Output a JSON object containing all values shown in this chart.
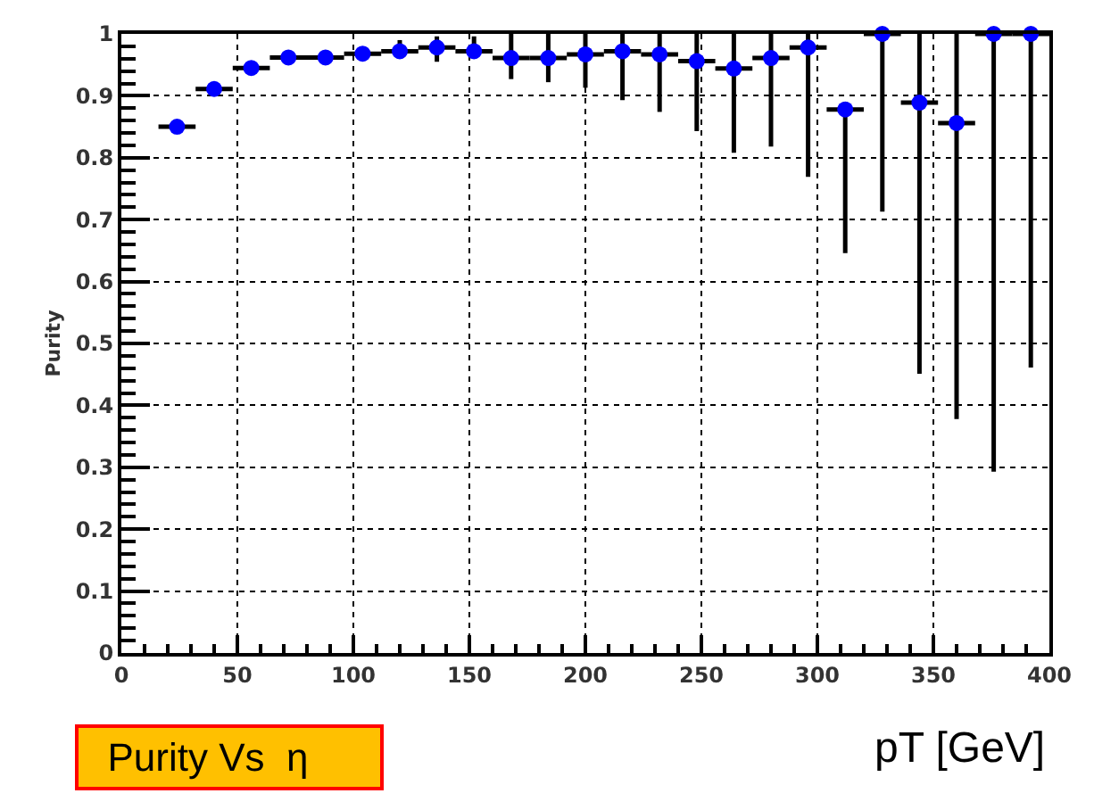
{
  "chart_data": {
    "type": "scatter",
    "ylabel": "Purity",
    "xlabel": "pT [GeV]",
    "annotations": [
      "Purity Vs  η"
    ],
    "x": [
      24,
      40,
      56,
      72,
      88,
      104,
      120,
      136,
      152,
      168,
      184,
      200,
      216,
      232,
      248,
      264,
      280,
      296,
      312,
      328,
      344,
      360,
      376,
      392
    ],
    "series": [
      {
        "color": "#0000ff",
        "values": [
          0.85,
          0.911,
          0.945,
          0.962,
          0.962,
          0.968,
          0.972,
          0.978,
          0.972,
          0.961,
          0.961,
          0.967,
          0.972,
          0.967,
          0.956,
          0.944,
          0.961,
          0.978,
          0.878,
          1.0,
          0.889,
          0.856,
          1.0,
          1.0
        ],
        "errors": [
          null,
          null,
          null,
          null,
          null,
          null,
          [
            0.96,
            0.99
          ],
          [
            0.955,
            0.996
          ],
          [
            0.96,
            0.996
          ],
          [
            0.927,
            1.0
          ],
          [
            0.922,
            1.0
          ],
          [
            0.913,
            1.0
          ],
          [
            0.893,
            1.0
          ],
          [
            0.874,
            1.0
          ],
          [
            0.843,
            1.0
          ],
          [
            0.808,
            1.0
          ],
          [
            0.818,
            1.0
          ],
          [
            0.769,
            1.0
          ],
          [
            0.646,
            0.89
          ],
          [
            0.713,
            1.0
          ],
          [
            0.451,
            1.0
          ],
          [
            0.378,
            1.0
          ],
          [
            0.293,
            1.0
          ],
          [
            0.461,
            1.0
          ]
        ],
        "xerrors": [
          8,
          8,
          8,
          8,
          8,
          8,
          8,
          8,
          8,
          8,
          8,
          8,
          8,
          8,
          8,
          8,
          8,
          8,
          8,
          8,
          8,
          8,
          8,
          8
        ]
      }
    ],
    "xlim": [
      0,
      400
    ],
    "xticks": [
      0,
      50,
      100,
      150,
      200,
      250,
      300,
      350,
      400
    ],
    "ylim": [
      0,
      1
    ],
    "yticks": [
      0,
      0.1,
      0.2,
      0.3,
      0.4,
      0.5,
      0.6,
      0.7,
      0.8,
      0.9,
      1
    ],
    "grid": true,
    "marker": "circle"
  }
}
